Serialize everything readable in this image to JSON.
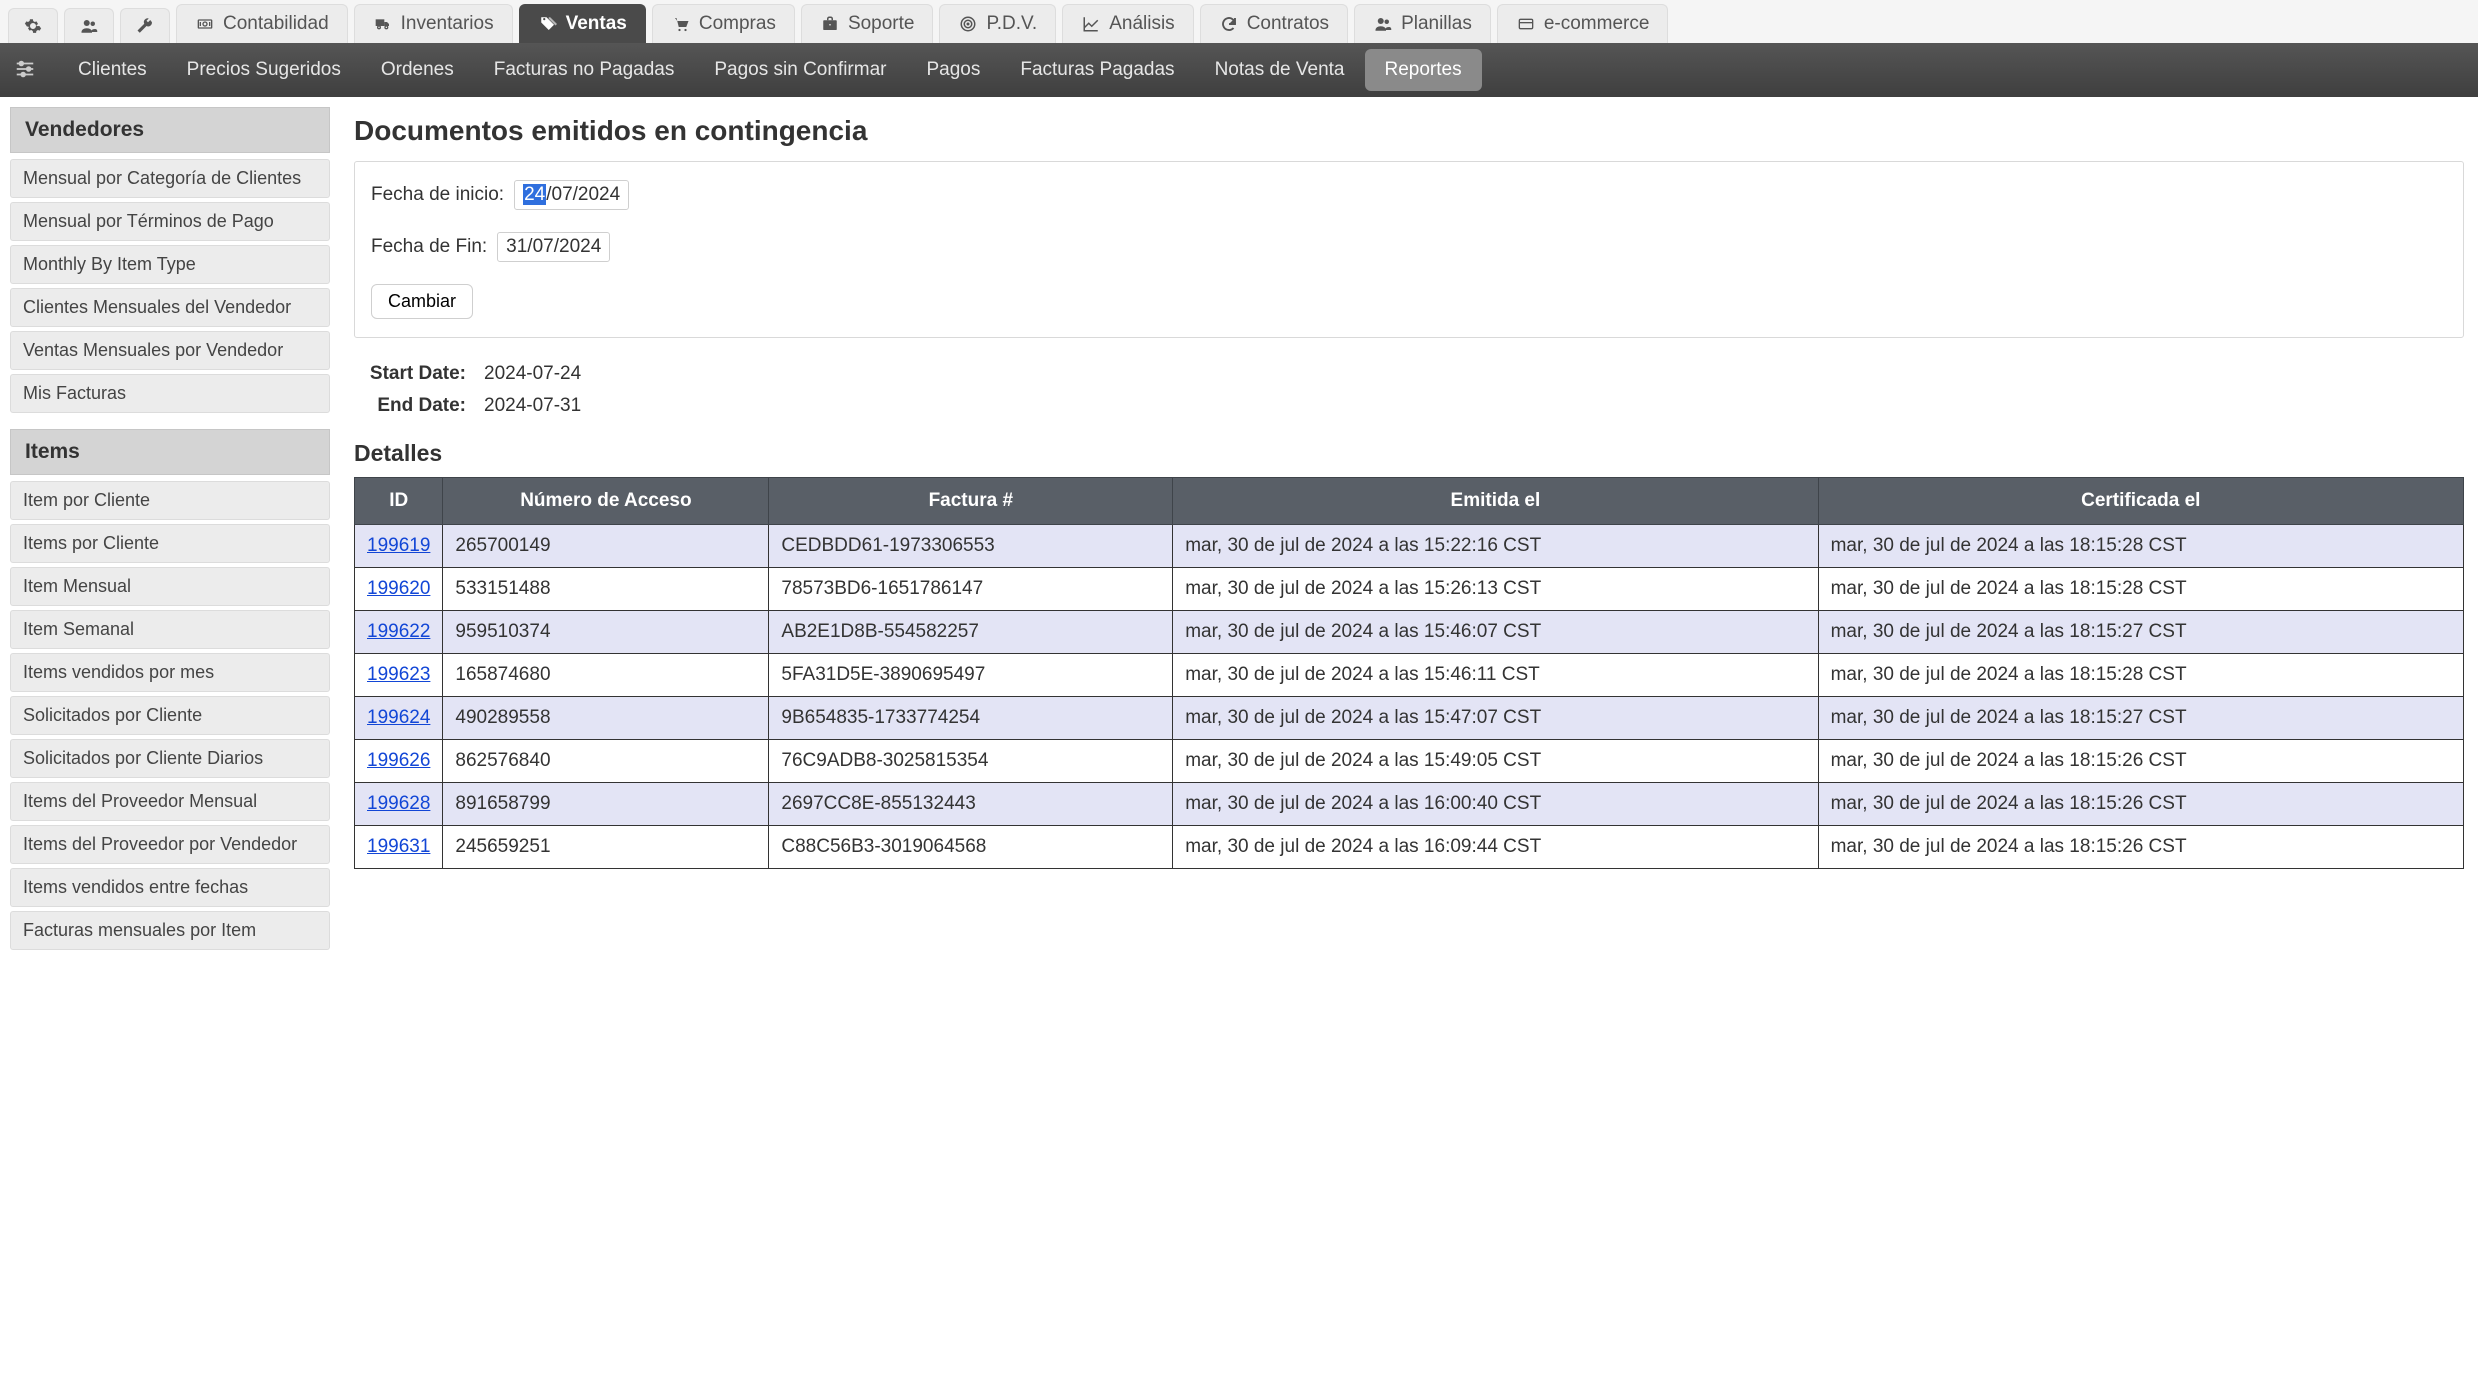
{
  "topTabs": [
    {
      "icon": "gear",
      "label": ""
    },
    {
      "icon": "users",
      "label": ""
    },
    {
      "icon": "wrench",
      "label": ""
    },
    {
      "icon": "money",
      "label": "Contabilidad"
    },
    {
      "icon": "truck",
      "label": "Inventarios"
    },
    {
      "icon": "tags",
      "label": "Ventas",
      "active": true
    },
    {
      "icon": "cart",
      "label": "Compras"
    },
    {
      "icon": "briefcase",
      "label": "Soporte"
    },
    {
      "icon": "target",
      "label": "P.D.V."
    },
    {
      "icon": "chart",
      "label": "Análisis"
    },
    {
      "icon": "refresh",
      "label": "Contratos"
    },
    {
      "icon": "users",
      "label": "Planillas"
    },
    {
      "icon": "card",
      "label": "e-commerce"
    }
  ],
  "subNav": {
    "items": [
      {
        "label": "Clientes"
      },
      {
        "label": "Precios Sugeridos"
      },
      {
        "label": "Ordenes"
      },
      {
        "label": "Facturas no Pagadas"
      },
      {
        "label": "Pagos sin Confirmar"
      },
      {
        "label": "Pagos"
      },
      {
        "label": "Facturas Pagadas"
      },
      {
        "label": "Notas de Venta"
      },
      {
        "label": "Reportes",
        "active": true
      }
    ]
  },
  "sidebar": {
    "sections": [
      {
        "title": "Vendedores",
        "items": [
          "Mensual por Categoría de Clientes",
          "Mensual por Términos de Pago",
          "Monthly By Item Type",
          "Clientes Mensuales del Vendedor",
          "Ventas Mensuales por Vendedor",
          "Mis Facturas"
        ]
      },
      {
        "title": "Items",
        "items": [
          "Item por Cliente",
          "Items por Cliente",
          "Item Mensual",
          "Item Semanal",
          "Items vendidos por mes",
          "Solicitados por Cliente",
          "Solicitados por Cliente Diarios",
          "Items del Proveedor Mensual",
          "Items del Proveedor por Vendedor",
          "Items vendidos entre fechas",
          "Facturas mensuales por Item"
        ]
      }
    ]
  },
  "page": {
    "title": "Documentos emitidos en contingencia",
    "filter": {
      "startLabel": "Fecha de inicio:",
      "startValueDay": "24",
      "startValueRest": "/07/2024",
      "endLabel": "Fecha de Fin:",
      "endValue": "31/07/2024",
      "submitLabel": "Cambiar"
    },
    "summary": {
      "startLabel": "Start Date:",
      "startValue": "2024-07-24",
      "endLabel": "End Date:",
      "endValue": "2024-07-31"
    },
    "detailsTitle": "Detalles",
    "table": {
      "columns": [
        "ID",
        "Número de Acceso",
        "Factura #",
        "Emitida el",
        "Certificada el"
      ],
      "rows": [
        {
          "id": "199619",
          "acceso": "265700149",
          "factura": "CEDBDD61-1973306553",
          "emitida": "mar, 30 de jul de 2024 a las 15:22:16 CST",
          "certificada": "mar, 30 de jul de 2024 a las 18:15:28 CST"
        },
        {
          "id": "199620",
          "acceso": "533151488",
          "factura": "78573BD6-1651786147",
          "emitida": "mar, 30 de jul de 2024 a las 15:26:13 CST",
          "certificada": "mar, 30 de jul de 2024 a las 18:15:28 CST"
        },
        {
          "id": "199622",
          "acceso": "959510374",
          "factura": "AB2E1D8B-554582257",
          "emitida": "mar, 30 de jul de 2024 a las 15:46:07 CST",
          "certificada": "mar, 30 de jul de 2024 a las 18:15:27 CST"
        },
        {
          "id": "199623",
          "acceso": "165874680",
          "factura": "5FA31D5E-3890695497",
          "emitida": "mar, 30 de jul de 2024 a las 15:46:11 CST",
          "certificada": "mar, 30 de jul de 2024 a las 18:15:28 CST"
        },
        {
          "id": "199624",
          "acceso": "490289558",
          "factura": "9B654835-1733774254",
          "emitida": "mar, 30 de jul de 2024 a las 15:47:07 CST",
          "certificada": "mar, 30 de jul de 2024 a las 18:15:27 CST"
        },
        {
          "id": "199626",
          "acceso": "862576840",
          "factura": "76C9ADB8-3025815354",
          "emitida": "mar, 30 de jul de 2024 a las 15:49:05 CST",
          "certificada": "mar, 30 de jul de 2024 a las 18:15:26 CST"
        },
        {
          "id": "199628",
          "acceso": "891658799",
          "factura": "2697CC8E-855132443",
          "emitida": "mar, 30 de jul de 2024 a las 16:00:40 CST",
          "certificada": "mar, 30 de jul de 2024 a las 18:15:26 CST"
        },
        {
          "id": "199631",
          "acceso": "245659251",
          "factura": "C88C56B3-3019064568",
          "emitida": "mar, 30 de jul de 2024 a las 16:09:44 CST",
          "certificada": "mar, 30 de jul de 2024 a las 18:15:26 CST"
        }
      ]
    }
  },
  "colors": {
    "subnav_bg": "#4a4a4a",
    "table_header_bg": "#595f67",
    "row_odd_bg": "#e3e4f5",
    "link_color": "#1246d6"
  }
}
